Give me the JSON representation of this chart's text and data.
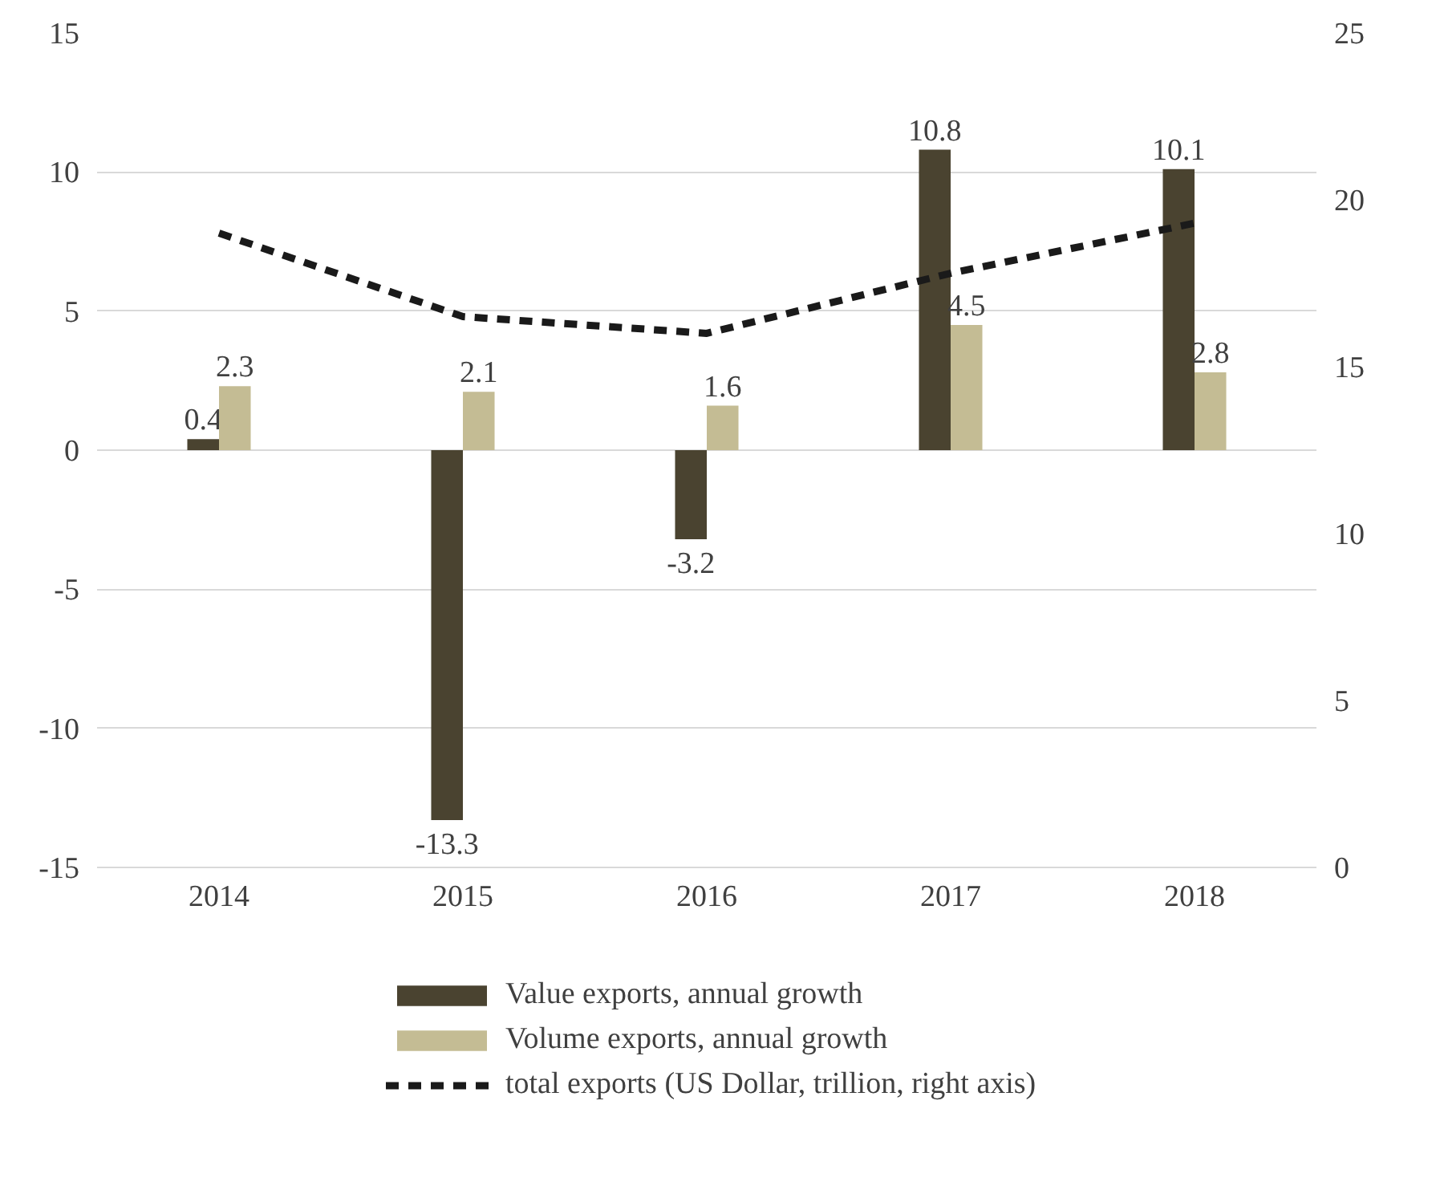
{
  "chart_data": {
    "type": "bar",
    "categories": [
      "2014",
      "2015",
      "2016",
      "2017",
      "2018"
    ],
    "ylim": [
      -15,
      15
    ],
    "yticks": [
      -15,
      -10,
      -5,
      0,
      5,
      10,
      15
    ],
    "y2lim": [
      0,
      25
    ],
    "y2ticks": [
      0,
      5,
      10,
      15,
      20,
      25
    ],
    "grid": "y",
    "legend": "bottom",
    "series": [
      {
        "name": "Value exports, annual growth",
        "color": "#4a4330",
        "values": [
          0.4,
          -13.3,
          -3.2,
          10.8,
          10.1
        ],
        "value_labels": [
          "0.4",
          "-13.3",
          "-3.2",
          "10.8",
          "10.1"
        ]
      },
      {
        "name": "Volume exports, annual growth",
        "color": "#c4bc94",
        "values": [
          2.3,
          2.1,
          1.6,
          4.5,
          2.8
        ],
        "value_labels": [
          "2.3",
          "2.1",
          "1.6",
          "4.5",
          "2.8"
        ]
      },
      {
        "name": "total exports (US Dollar, trillion, right axis)",
        "type": "line",
        "axis": "y2",
        "color": "#1a1a1a",
        "line_style": "dashed",
        "marker": "none",
        "values": [
          19.0,
          16.5,
          16.0,
          17.8,
          19.3
        ]
      }
    ]
  }
}
